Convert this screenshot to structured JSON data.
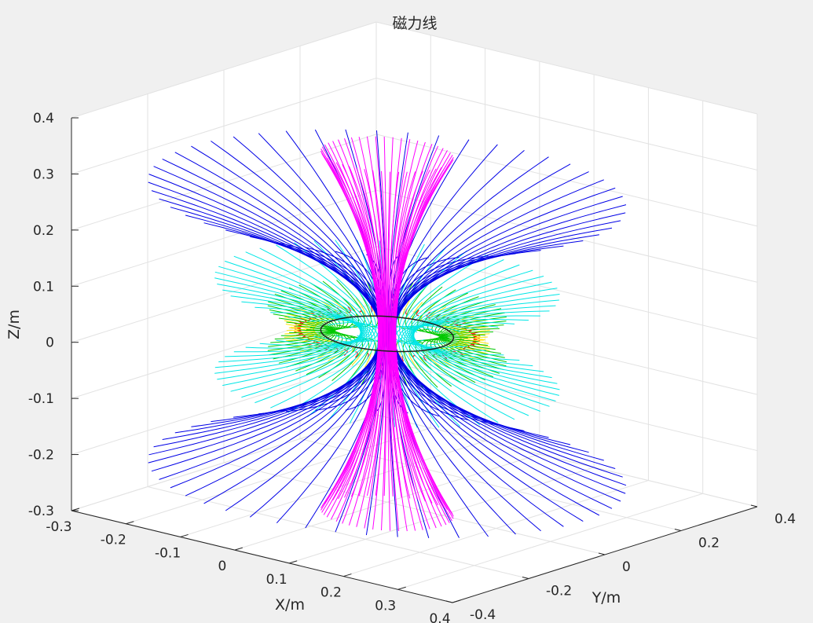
{
  "chart_data": {
    "type": "line3d",
    "title": "磁力线",
    "xlabel": "X/m",
    "ylabel": "Y/m",
    "zlabel": "Z/m",
    "grid": true,
    "xlim": [
      -0.3,
      0.4
    ],
    "ylim": [
      -0.4,
      0.4
    ],
    "zlim": [
      -0.3,
      0.4
    ],
    "x_ticks": [
      "-0.3",
      "-0.2",
      "-0.1",
      "0",
      "0.1",
      "0.2",
      "0.3",
      "0.4"
    ],
    "y_ticks": [
      "-0.4",
      "-0.2",
      "0",
      "0.2",
      "0.4"
    ],
    "z_ticks": [
      "-0.3",
      "-0.2",
      "-0.1",
      "0",
      "0.1",
      "0.2",
      "0.3",
      "0.4"
    ],
    "series": [
      {
        "color": "#ff0000",
        "top_z": 0.005,
        "flare_radius": 0.14,
        "waist_radius": 0.13
      },
      {
        "color": "#ffe600",
        "top_z": 0.015,
        "flare_radius": 0.155,
        "waist_radius": 0.11
      },
      {
        "color": "#00c800",
        "top_z": 0.04,
        "flare_radius": 0.18,
        "waist_radius": 0.08
      },
      {
        "color": "#00e6e6",
        "top_z": 0.085,
        "flare_radius": 0.26,
        "waist_radius": 0.04
      },
      {
        "color": "#0000e6",
        "top_z": 0.25,
        "flare_radius": 0.36,
        "waist_radius": 0.01
      },
      {
        "color": "#ff00ff",
        "top_z": 0.32,
        "flare_radius": 0.1,
        "waist_radius": 0.013
      }
    ],
    "ring_radius": 0.1,
    "lines_per_family": 48
  }
}
